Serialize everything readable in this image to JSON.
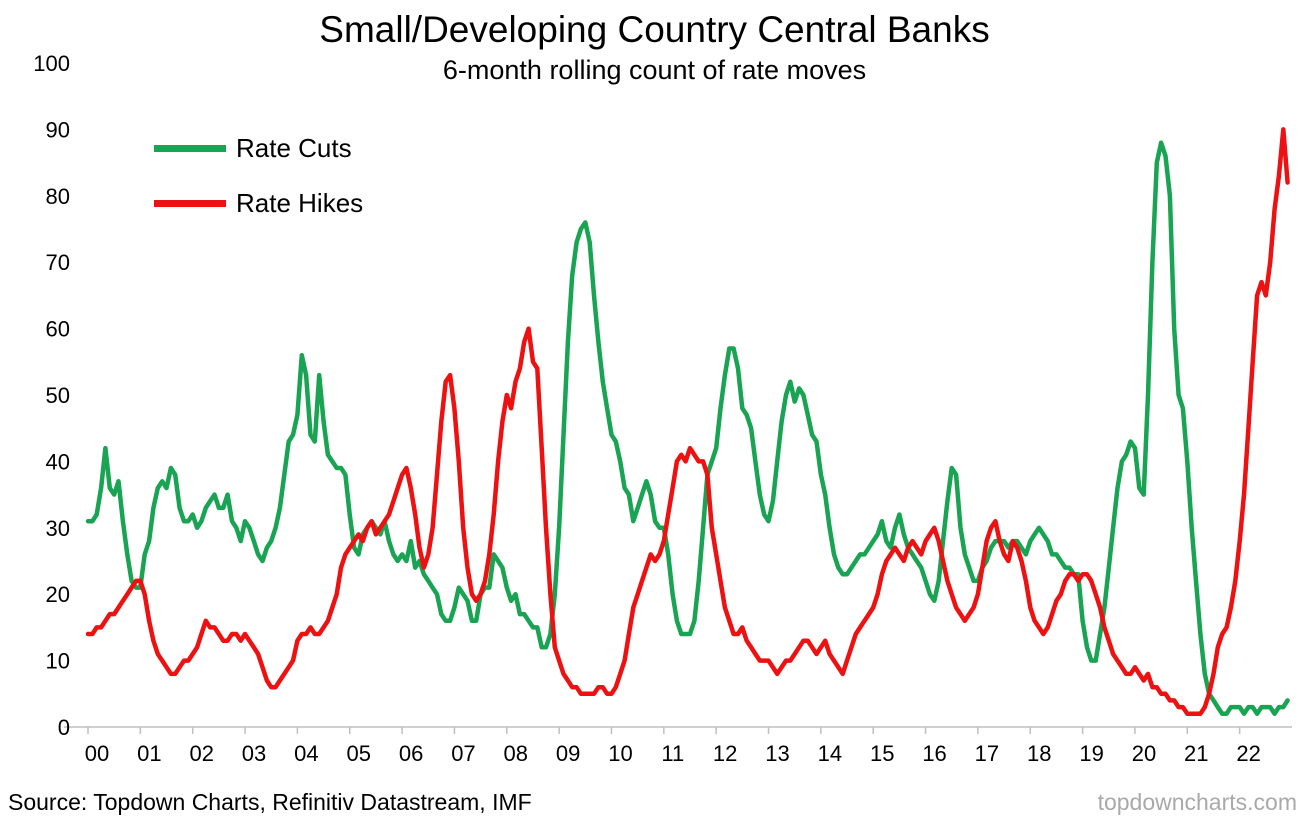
{
  "header": {
    "title": "Small/Developing Country Central Banks",
    "subtitle": "6-month rolling count of rate moves"
  },
  "legend": [
    {
      "label": "Rate Cuts",
      "color": "#18A452"
    },
    {
      "label": "Rate Hikes",
      "color": "#EE1111"
    }
  ],
  "footer": {
    "source": "Source: Topdown Charts, Refinitiv Datastream, IMF",
    "watermark": "topdowncharts.com"
  },
  "chart_data": {
    "type": "line",
    "title": "Small/Developing Country Central Banks",
    "subtitle": "6-month rolling count of rate moves",
    "x_start_year": 2000,
    "x_frequency": "monthly",
    "x_tick_labels": [
      "00",
      "01",
      "02",
      "03",
      "04",
      "05",
      "06",
      "07",
      "08",
      "09",
      "10",
      "11",
      "12",
      "13",
      "14",
      "15",
      "16",
      "17",
      "18",
      "19",
      "20",
      "21",
      "22"
    ],
    "ylim": [
      0,
      100
    ],
    "y_ticks": [
      0,
      10,
      20,
      30,
      40,
      50,
      60,
      70,
      80,
      90,
      100
    ],
    "grid": false,
    "legend_position": "top-left",
    "axis_color": "#bfbfbf",
    "series": [
      {
        "name": "Rate Cuts",
        "color": "#18A452",
        "values": [
          31,
          31,
          32,
          36,
          42,
          36,
          35,
          37,
          31,
          26,
          22,
          21,
          21,
          26,
          28,
          33,
          36,
          37,
          36,
          39,
          38,
          33,
          31,
          31,
          32,
          30,
          31,
          33,
          34,
          35,
          33,
          33,
          35,
          31,
          30,
          28,
          31,
          30,
          28,
          26,
          25,
          27,
          28,
          30,
          33,
          38,
          43,
          44,
          47,
          56,
          53,
          44,
          43,
          53,
          46,
          41,
          40,
          39,
          39,
          38,
          32,
          27,
          26,
          29,
          30,
          31,
          30,
          29,
          31,
          28,
          26,
          25,
          26,
          25,
          28,
          24,
          25,
          23,
          22,
          21,
          20,
          17,
          16,
          16,
          18,
          21,
          20,
          19,
          16,
          16,
          20,
          21,
          21,
          26,
          25,
          24,
          21,
          19,
          20,
          17,
          17,
          16,
          15,
          15,
          12,
          12,
          14,
          20,
          30,
          44,
          58,
          68,
          73,
          75,
          76,
          73,
          65,
          58,
          52,
          48,
          44,
          43,
          40,
          36,
          35,
          31,
          33,
          35,
          37,
          35,
          31,
          30,
          30,
          26,
          20,
          16,
          14,
          14,
          14,
          16,
          22,
          30,
          38,
          40,
          42,
          48,
          53,
          57,
          57,
          54,
          48,
          47,
          45,
          40,
          35,
          32,
          31,
          34,
          40,
          46,
          50,
          52,
          49,
          51,
          50,
          47,
          44,
          43,
          38,
          35,
          30,
          26,
          24,
          23,
          23,
          24,
          25,
          26,
          26,
          27,
          28,
          29,
          31,
          28,
          27,
          30,
          32,
          29,
          27,
          26,
          25,
          24,
          22,
          20,
          19,
          22,
          28,
          34,
          39,
          38,
          30,
          26,
          24,
          22,
          22,
          24,
          25,
          27,
          28,
          28,
          28,
          27,
          28,
          28,
          27,
          26,
          28,
          29,
          30,
          29,
          28,
          26,
          26,
          25,
          24,
          24,
          23,
          23,
          16,
          12,
          10,
          10,
          14,
          18,
          24,
          30,
          36,
          40,
          41,
          43,
          42,
          36,
          35,
          50,
          70,
          85,
          88,
          86,
          80,
          60,
          50,
          48,
          40,
          30,
          22,
          14,
          8,
          5,
          4,
          3,
          2,
          2,
          3,
          3,
          3,
          2,
          3,
          3,
          2,
          3,
          3,
          3,
          2,
          3,
          3,
          4
        ]
      },
      {
        "name": "Rate Hikes",
        "color": "#EE1111",
        "values": [
          14,
          14,
          15,
          15,
          16,
          17,
          17,
          18,
          19,
          20,
          21,
          22,
          22,
          20,
          16,
          13,
          11,
          10,
          9,
          8,
          8,
          9,
          10,
          10,
          11,
          12,
          14,
          16,
          15,
          15,
          14,
          13,
          13,
          14,
          14,
          13,
          14,
          13,
          12,
          11,
          9,
          7,
          6,
          6,
          7,
          8,
          9,
          10,
          13,
          14,
          14,
          15,
          14,
          14,
          15,
          16,
          18,
          20,
          24,
          26,
          27,
          28,
          29,
          28,
          30,
          31,
          29,
          30,
          31,
          32,
          34,
          36,
          38,
          39,
          36,
          32,
          27,
          24,
          26,
          30,
          38,
          46,
          52,
          53,
          48,
          40,
          30,
          24,
          20,
          19,
          20,
          22,
          26,
          32,
          40,
          46,
          50,
          48,
          52,
          54,
          58,
          60,
          55,
          54,
          42,
          30,
          20,
          12,
          10,
          8,
          7,
          6,
          6,
          5,
          5,
          5,
          5,
          6,
          6,
          5,
          5,
          6,
          8,
          10,
          14,
          18,
          20,
          22,
          24,
          26,
          25,
          26,
          28,
          32,
          36,
          40,
          41,
          40,
          42,
          41,
          40,
          40,
          38,
          30,
          26,
          22,
          18,
          16,
          14,
          14,
          15,
          13,
          12,
          11,
          10,
          10,
          10,
          9,
          8,
          9,
          10,
          10,
          11,
          12,
          13,
          13,
          12,
          11,
          12,
          13,
          11,
          10,
          9,
          8,
          10,
          12,
          14,
          15,
          16,
          17,
          18,
          20,
          23,
          25,
          26,
          27,
          26,
          25,
          27,
          28,
          27,
          26,
          28,
          29,
          30,
          28,
          25,
          22,
          20,
          18,
          17,
          16,
          17,
          18,
          20,
          24,
          28,
          30,
          31,
          28,
          26,
          25,
          28,
          27,
          25,
          22,
          18,
          16,
          15,
          14,
          15,
          17,
          19,
          20,
          22,
          23,
          23,
          22,
          23,
          23,
          22,
          20,
          18,
          15,
          13,
          11,
          10,
          9,
          8,
          8,
          9,
          8,
          7,
          8,
          6,
          6,
          5,
          5,
          4,
          4,
          3,
          3,
          2,
          2,
          2,
          2,
          3,
          5,
          8,
          12,
          14,
          15,
          18,
          22,
          28,
          35,
          45,
          55,
          65,
          67,
          65,
          70,
          78,
          83,
          90,
          82
        ]
      }
    ]
  }
}
